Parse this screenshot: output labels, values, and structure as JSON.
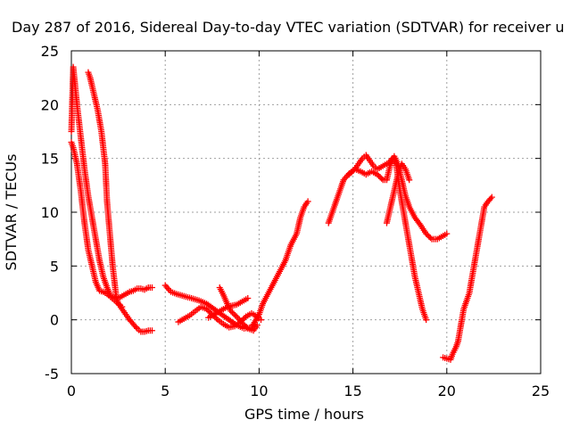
{
  "chart_data": {
    "type": "scatter",
    "title": "Day 287 of 2016, Sidereal Day-to-day VTEC variation (SDTVAR) for receiver u",
    "xlabel": "GPS time / hours",
    "ylabel": "SDTVAR / TECUs",
    "xlim": [
      0,
      25
    ],
    "ylim": [
      -5,
      25
    ],
    "xticks": [
      "0",
      "5",
      "10",
      "15",
      "20",
      "25"
    ],
    "yticks": [
      "-5",
      "0",
      "5",
      "10",
      "15",
      "20",
      "25"
    ],
    "xtick_values": [
      0,
      5,
      10,
      15,
      20,
      25
    ],
    "ytick_values": [
      -5,
      0,
      5,
      10,
      15,
      20,
      25
    ],
    "grid": true,
    "marker": "plus",
    "series_color": "#ff0000",
    "series": [
      {
        "values": [
          [
            0.0,
            17.5
          ],
          [
            0.1,
            23.5
          ],
          [
            0.3,
            20.0
          ],
          [
            0.5,
            17.0
          ],
          [
            0.7,
            14.0
          ],
          [
            0.9,
            11.5
          ],
          [
            1.1,
            9.5
          ],
          [
            1.3,
            7.5
          ],
          [
            1.5,
            5.5
          ],
          [
            1.7,
            4.0
          ],
          [
            1.9,
            3.0
          ],
          [
            2.1,
            2.2
          ],
          [
            2.3,
            2.0
          ],
          [
            2.5,
            2.0
          ],
          [
            2.7,
            2.2
          ],
          [
            2.9,
            2.4
          ],
          [
            3.1,
            2.6
          ],
          [
            3.3,
            2.7
          ],
          [
            3.5,
            2.9
          ],
          [
            3.7,
            2.9
          ],
          [
            3.9,
            2.8
          ],
          [
            4.1,
            3.0
          ],
          [
            4.3,
            3.0
          ]
        ]
      },
      {
        "values": [
          [
            0.0,
            16.5
          ],
          [
            0.1,
            16.0
          ],
          [
            0.3,
            14.5
          ],
          [
            0.5,
            12.0
          ],
          [
            0.7,
            9.0
          ],
          [
            0.9,
            6.5
          ],
          [
            1.1,
            5.0
          ],
          [
            1.3,
            3.5
          ],
          [
            1.5,
            2.7
          ],
          [
            1.7,
            2.6
          ],
          [
            1.9,
            2.4
          ],
          [
            2.1,
            2.1
          ],
          [
            2.3,
            1.8
          ],
          [
            2.5,
            1.5
          ],
          [
            2.7,
            1.0
          ],
          [
            2.9,
            0.5
          ],
          [
            3.1,
            0.0
          ],
          [
            3.3,
            -0.4
          ],
          [
            3.5,
            -0.8
          ],
          [
            3.7,
            -1.1
          ],
          [
            3.9,
            -1.1
          ],
          [
            4.1,
            -1.0
          ],
          [
            4.3,
            -1.0
          ]
        ]
      },
      {
        "values": [
          [
            0.9,
            23.0
          ],
          [
            1.0,
            22.5
          ],
          [
            1.2,
            21.0
          ],
          [
            1.4,
            19.5
          ],
          [
            1.6,
            17.5
          ],
          [
            1.8,
            14.5
          ],
          [
            1.9,
            11.0
          ],
          [
            2.0,
            9.0
          ],
          [
            2.1,
            7.0
          ],
          [
            2.2,
            5.0
          ],
          [
            2.3,
            3.5
          ],
          [
            2.4,
            2.0
          ],
          [
            2.5,
            1.5
          ],
          [
            2.7,
            1.2
          ]
        ]
      },
      {
        "values": [
          [
            5.0,
            3.2
          ],
          [
            5.3,
            2.6
          ],
          [
            5.6,
            2.4
          ],
          [
            6.0,
            2.2
          ],
          [
            6.4,
            2.0
          ],
          [
            6.8,
            1.8
          ],
          [
            7.2,
            1.5
          ],
          [
            7.6,
            1.0
          ],
          [
            8.0,
            0.5
          ],
          [
            8.4,
            0.0
          ],
          [
            8.8,
            -0.5
          ],
          [
            9.2,
            -0.8
          ],
          [
            9.6,
            -0.7
          ],
          [
            10.0,
            0.5
          ],
          [
            10.2,
            1.5
          ],
          [
            10.5,
            2.5
          ],
          [
            10.8,
            3.5
          ],
          [
            11.1,
            4.5
          ],
          [
            11.4,
            5.5
          ],
          [
            11.7,
            7.0
          ],
          [
            12.0,
            8.0
          ],
          [
            12.2,
            9.5
          ],
          [
            12.4,
            10.5
          ],
          [
            12.6,
            11.0
          ]
        ]
      },
      {
        "values": [
          [
            5.7,
            -0.2
          ],
          [
            6.0,
            0.1
          ],
          [
            6.3,
            0.4
          ],
          [
            6.6,
            0.8
          ],
          [
            6.9,
            1.2
          ],
          [
            7.2,
            1.0
          ],
          [
            7.5,
            0.5
          ],
          [
            7.8,
            0.0
          ],
          [
            8.1,
            -0.4
          ],
          [
            8.4,
            -0.7
          ],
          [
            8.7,
            -0.6
          ],
          [
            9.0,
            -0.2
          ],
          [
            9.3,
            0.3
          ],
          [
            9.6,
            0.6
          ],
          [
            9.9,
            0.3
          ],
          [
            10.1,
            0.0
          ]
        ]
      },
      {
        "values": [
          [
            7.9,
            3.0
          ],
          [
            8.1,
            2.3
          ],
          [
            8.3,
            1.5
          ],
          [
            8.5,
            0.8
          ],
          [
            8.8,
            0.3
          ],
          [
            9.1,
            -0.3
          ],
          [
            9.4,
            -0.8
          ],
          [
            9.7,
            -1.0
          ],
          [
            9.9,
            -0.5
          ]
        ]
      },
      {
        "values": [
          [
            7.3,
            0.2
          ],
          [
            7.6,
            0.5
          ],
          [
            7.9,
            0.8
          ],
          [
            8.2,
            1.1
          ],
          [
            8.5,
            1.3
          ],
          [
            8.8,
            1.4
          ],
          [
            9.1,
            1.7
          ],
          [
            9.4,
            2.0
          ]
        ]
      },
      {
        "values": [
          [
            13.7,
            9.0
          ],
          [
            13.9,
            10.0
          ],
          [
            14.1,
            11.0
          ],
          [
            14.3,
            12.0
          ],
          [
            14.5,
            13.0
          ],
          [
            14.8,
            13.6
          ],
          [
            15.1,
            14.0
          ],
          [
            15.3,
            14.5
          ],
          [
            15.5,
            15.0
          ],
          [
            15.7,
            15.3
          ],
          [
            15.9,
            14.8
          ],
          [
            16.1,
            14.3
          ],
          [
            16.3,
            14.0
          ],
          [
            16.5,
            14.2
          ],
          [
            16.7,
            14.4
          ],
          [
            16.9,
            14.6
          ],
          [
            17.1,
            15.0
          ],
          [
            17.3,
            14.5
          ],
          [
            17.5,
            12.0
          ],
          [
            17.7,
            10.0
          ],
          [
            17.9,
            8.0
          ],
          [
            18.1,
            6.0
          ],
          [
            18.3,
            4.0
          ],
          [
            18.5,
            2.5
          ],
          [
            18.7,
            1.0
          ],
          [
            18.9,
            0.0
          ]
        ]
      },
      {
        "values": [
          [
            14.8,
            13.5
          ],
          [
            15.1,
            14.0
          ],
          [
            15.4,
            13.8
          ],
          [
            15.7,
            13.5
          ],
          [
            16.0,
            13.8
          ],
          [
            16.3,
            13.5
          ],
          [
            16.6,
            13.0
          ],
          [
            16.8,
            13.0
          ],
          [
            17.0,
            14.5
          ],
          [
            17.2,
            15.2
          ],
          [
            17.4,
            14.5
          ],
          [
            17.6,
            13.0
          ],
          [
            17.8,
            11.5
          ],
          [
            18.0,
            10.5
          ],
          [
            18.3,
            9.5
          ],
          [
            18.6,
            8.8
          ],
          [
            18.9,
            8.0
          ],
          [
            19.2,
            7.5
          ],
          [
            19.5,
            7.5
          ],
          [
            19.8,
            7.8
          ],
          [
            20.0,
            8.0
          ]
        ]
      },
      {
        "values": [
          [
            16.8,
            9.0
          ],
          [
            17.0,
            10.5
          ],
          [
            17.2,
            12.0
          ],
          [
            17.4,
            13.5
          ],
          [
            17.6,
            14.5
          ],
          [
            17.8,
            14.0
          ],
          [
            18.0,
            13.0
          ]
        ]
      },
      {
        "values": [
          [
            19.8,
            -3.5
          ],
          [
            20.0,
            -3.6
          ],
          [
            20.2,
            -3.7
          ],
          [
            20.3,
            -3.2
          ],
          [
            20.5,
            -2.5
          ],
          [
            20.6,
            -2.0
          ],
          [
            20.7,
            -1.0
          ],
          [
            20.8,
            0.0
          ],
          [
            20.9,
            1.0
          ],
          [
            21.0,
            1.5
          ],
          [
            21.1,
            2.0
          ],
          [
            21.2,
            2.5
          ],
          [
            21.3,
            3.5
          ],
          [
            21.4,
            4.5
          ],
          [
            21.5,
            5.5
          ],
          [
            21.6,
            6.5
          ],
          [
            21.7,
            7.5
          ],
          [
            21.8,
            8.5
          ],
          [
            21.9,
            9.5
          ],
          [
            22.0,
            10.5
          ],
          [
            22.2,
            11.0
          ],
          [
            22.4,
            11.4
          ]
        ]
      }
    ]
  }
}
